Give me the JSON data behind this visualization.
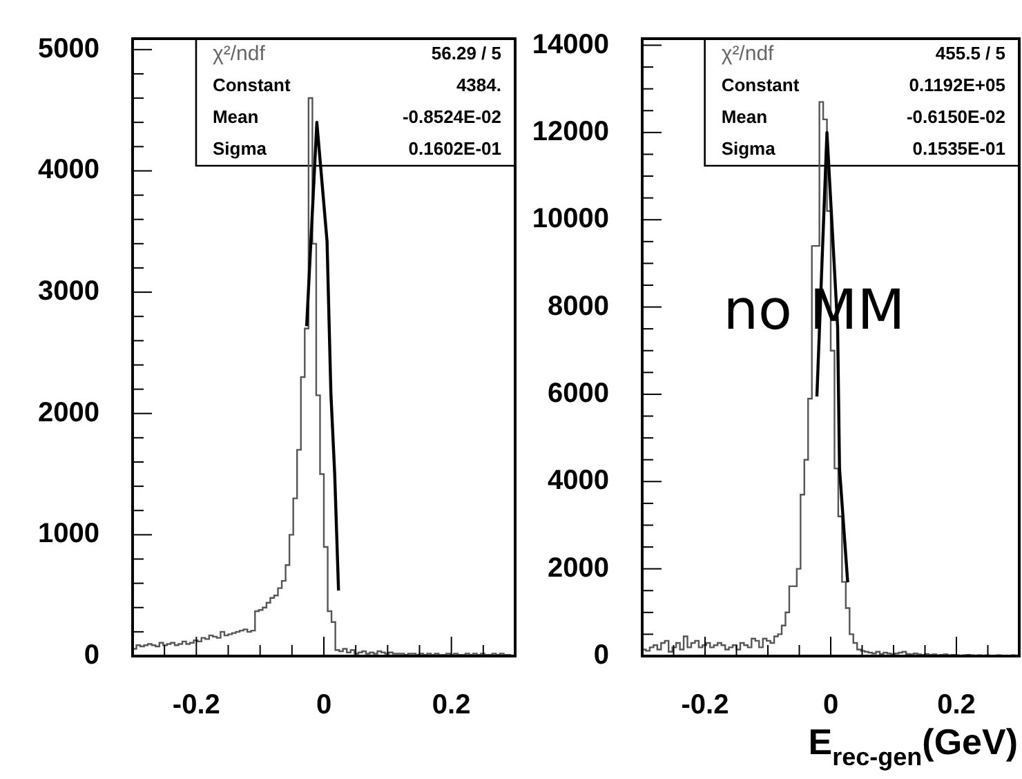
{
  "chart_data": [
    {
      "type": "step",
      "series": [
        {
          "type": "step",
          "color": "#555555",
          "x": [
            -0.3,
            -0.294,
            -0.288,
            -0.282,
            -0.276,
            -0.27,
            -0.264,
            -0.258,
            -0.252,
            -0.246,
            -0.24,
            -0.234,
            -0.228,
            -0.222,
            -0.216,
            -0.21,
            -0.204,
            -0.198,
            -0.192,
            -0.186,
            -0.18,
            -0.174,
            -0.168,
            -0.162,
            -0.156,
            -0.15,
            -0.144,
            -0.138,
            -0.132,
            -0.126,
            -0.12,
            -0.114,
            -0.108,
            -0.102,
            -0.096,
            -0.09,
            -0.084,
            -0.078,
            -0.072,
            -0.066,
            -0.06,
            -0.054,
            -0.048,
            -0.042,
            -0.036,
            -0.03,
            -0.024,
            -0.018,
            -0.012,
            -0.006,
            0,
            0.006,
            0.012,
            0.018,
            0.024,
            0.03,
            0.036,
            0.042,
            0.048,
            0.054,
            0.06,
            0.066,
            0.072,
            0.078,
            0.084,
            0.09,
            0.096,
            0.102,
            0.108,
            0.114,
            0.12,
            0.126,
            0.132,
            0.138,
            0.144,
            0.15,
            0.156,
            0.162,
            0.168,
            0.174,
            0.18,
            0.186,
            0.192,
            0.198,
            0.204,
            0.21,
            0.216,
            0.222,
            0.228,
            0.234,
            0.24,
            0.246,
            0.252,
            0.258,
            0.264,
            0.27,
            0.276,
            0.282,
            0.288,
            0.294
          ],
          "values": [
            130,
            60,
            90,
            80,
            90,
            100,
            90,
            80,
            110,
            90,
            100,
            110,
            90,
            100,
            120,
            100,
            110,
            130,
            120,
            150,
            140,
            170,
            160,
            150,
            200,
            170,
            180,
            190,
            200,
            210,
            220,
            200,
            210,
            370,
            380,
            400,
            440,
            480,
            500,
            560,
            620,
            750,
            1000,
            1300,
            1700,
            2300,
            2700,
            4600,
            3400,
            2150,
            1500,
            900,
            370,
            280,
            50,
            40,
            60,
            30,
            50,
            20,
            30,
            40,
            20,
            30,
            20,
            40,
            30,
            20,
            30,
            20,
            20,
            20,
            10,
            20,
            20,
            10,
            20,
            10,
            20,
            10,
            20,
            10,
            10,
            20,
            10,
            20,
            10,
            10,
            20,
            10,
            20,
            10,
            20,
            10,
            10,
            20,
            10,
            20,
            10,
            10
          ]
        },
        {
          "type": "line",
          "color": "#000000",
          "x": [
            -0.027,
            -0.011,
            0.005,
            0.011,
            0.017,
            0.023
          ],
          "values": [
            2720,
            4400,
            3420,
            2170,
            1500,
            540
          ]
        }
      ],
      "annotations": [
        "χ²/ndf",
        "56.29 / 5",
        "Constant",
        "4384.",
        "Mean",
        "-0.8524E-02",
        "Sigma",
        "0.1602E-01"
      ],
      "xlim": [
        -0.3,
        0.3
      ],
      "xticks": [
        {
          "value": -0.25,
          "label": null
        },
        -0.2,
        {
          "value": -0.15,
          "label": null
        },
        {
          "value": -0.1,
          "label": null
        },
        {
          "value": -0.05,
          "label": null
        },
        0,
        {
          "value": 0.05,
          "label": null
        },
        {
          "value": 0.1,
          "label": null
        },
        {
          "value": 0.15,
          "label": null
        },
        0.2,
        {
          "value": 0.25,
          "label": null
        }
      ],
      "ylim": [
        0,
        5090
      ],
      "yticks": [
        0,
        {
          "value": 200,
          "label": null
        },
        {
          "value": 400,
          "label": null
        },
        {
          "value": 600,
          "label": null
        },
        {
          "value": 800,
          "label": null
        },
        1000,
        {
          "value": 1200,
          "label": null
        },
        {
          "value": 1400,
          "label": null
        },
        {
          "value": 1600,
          "label": null
        },
        {
          "value": 1800,
          "label": null
        },
        2000,
        {
          "value": 2200,
          "label": null
        },
        {
          "value": 2400,
          "label": null
        },
        {
          "value": 2600,
          "label": null
        },
        {
          "value": 2800,
          "label": null
        },
        3000,
        {
          "value": 3200,
          "label": null
        },
        {
          "value": 3400,
          "label": null
        },
        {
          "value": 3600,
          "label": null
        },
        {
          "value": 3800,
          "label": null
        },
        4000,
        {
          "value": 4200,
          "label": null
        },
        {
          "value": 4400,
          "label": null
        },
        {
          "value": 4600,
          "label": null
        },
        {
          "value": 4800,
          "label": null
        },
        5000
      ]
    },
    {
      "type": "step",
      "title": "no MM",
      "xlabel": "E$_{rec-gen}$(GeV)",
      "series": [
        {
          "type": "step",
          "color": "#555555",
          "x": [
            -0.3,
            -0.294,
            -0.288,
            -0.282,
            -0.276,
            -0.27,
            -0.264,
            -0.258,
            -0.252,
            -0.246,
            -0.24,
            -0.234,
            -0.228,
            -0.222,
            -0.216,
            -0.21,
            -0.204,
            -0.198,
            -0.192,
            -0.186,
            -0.18,
            -0.174,
            -0.168,
            -0.162,
            -0.156,
            -0.15,
            -0.144,
            -0.138,
            -0.132,
            -0.126,
            -0.12,
            -0.114,
            -0.108,
            -0.102,
            -0.096,
            -0.09,
            -0.084,
            -0.078,
            -0.072,
            -0.066,
            -0.06,
            -0.054,
            -0.048,
            -0.042,
            -0.036,
            -0.03,
            -0.024,
            -0.018,
            -0.012,
            -0.006,
            0,
            0.006,
            0.012,
            0.018,
            0.024,
            0.03,
            0.036,
            0.042,
            0.048,
            0.054,
            0.06,
            0.066,
            0.072,
            0.078,
            0.084,
            0.09,
            0.096,
            0.102,
            0.108,
            0.114,
            0.12,
            0.126,
            0.132,
            0.138,
            0.144,
            0.15,
            0.156,
            0.162,
            0.168,
            0.174,
            0.18,
            0.186,
            0.192,
            0.198,
            0.204,
            0.21,
            0.216,
            0.222,
            0.228,
            0.234,
            0.24,
            0.246,
            0.252,
            0.258,
            0.264,
            0.27,
            0.276,
            0.282,
            0.288,
            0.294
          ],
          "values": [
            100,
            150,
            120,
            200,
            250,
            150,
            300,
            350,
            100,
            200,
            300,
            150,
            450,
            200,
            300,
            350,
            200,
            250,
            300,
            200,
            250,
            300,
            250,
            150,
            200,
            250,
            150,
            300,
            250,
            200,
            400,
            350,
            200,
            400,
            350,
            300,
            450,
            500,
            700,
            1000,
            1600,
            1600,
            2000,
            3700,
            4500,
            5900,
            9400,
            9400,
            12700,
            12300,
            10200,
            7000,
            4300,
            3200,
            1700,
            1100,
            500,
            300,
            150,
            120,
            100,
            80,
            60,
            100,
            50,
            80,
            60,
            40,
            60,
            80,
            100,
            50,
            40,
            60,
            40,
            30,
            50,
            30,
            40,
            20,
            30,
            40,
            20,
            30,
            20,
            10,
            20,
            30,
            20,
            10,
            20,
            10,
            20,
            10,
            10,
            20,
            10,
            10,
            10,
            20
          ]
        },
        {
          "type": "line",
          "color": "#000000",
          "x": [
            -0.022,
            -0.006,
            0.011,
            0.014,
            0.027
          ],
          "values": [
            5950,
            12000,
            7540,
            4300,
            1690
          ]
        }
      ],
      "annotations": [
        "χ²/ndf",
        "455.5 / 5",
        "Constant",
        "0.1192E+05",
        "Mean",
        "-0.6150E-02",
        "Sigma",
        "0.1535E-01"
      ],
      "xlim": [
        -0.3,
        0.3
      ],
      "xticks": [
        {
          "value": -0.25,
          "label": null
        },
        -0.2,
        {
          "value": -0.15,
          "label": null
        },
        {
          "value": -0.1,
          "label": null
        },
        {
          "value": -0.05,
          "label": null
        },
        0,
        {
          "value": 0.05,
          "label": null
        },
        {
          "value": 0.1,
          "label": null
        },
        {
          "value": 0.15,
          "label": null
        },
        0.2,
        {
          "value": 0.25,
          "label": null
        }
      ],
      "ylim": [
        0,
        14150
      ],
      "yticks": [
        0,
        {
          "value": 500,
          "label": null
        },
        {
          "value": 1000,
          "label": null
        },
        {
          "value": 1500,
          "label": null
        },
        2000,
        {
          "value": 2500,
          "label": null
        },
        {
          "value": 3000,
          "label": null
        },
        {
          "value": 3500,
          "label": null
        },
        4000,
        {
          "value": 4500,
          "label": null
        },
        {
          "value": 5000,
          "label": null
        },
        {
          "value": 5500,
          "label": null
        },
        6000,
        {
          "value": 6500,
          "label": null
        },
        {
          "value": 7000,
          "label": null
        },
        {
          "value": 7500,
          "label": null
        },
        8000,
        {
          "value": 8500,
          "label": null
        },
        {
          "value": 9000,
          "label": null
        },
        {
          "value": 9500,
          "label": null
        },
        10000,
        {
          "value": 10500,
          "label": null
        },
        {
          "value": 11000,
          "label": null
        },
        {
          "value": 11500,
          "label": null
        },
        12000,
        {
          "value": 12500,
          "label": null
        },
        {
          "value": 13000,
          "label": null
        },
        {
          "value": 13500,
          "label": null
        },
        14000
      ]
    }
  ]
}
